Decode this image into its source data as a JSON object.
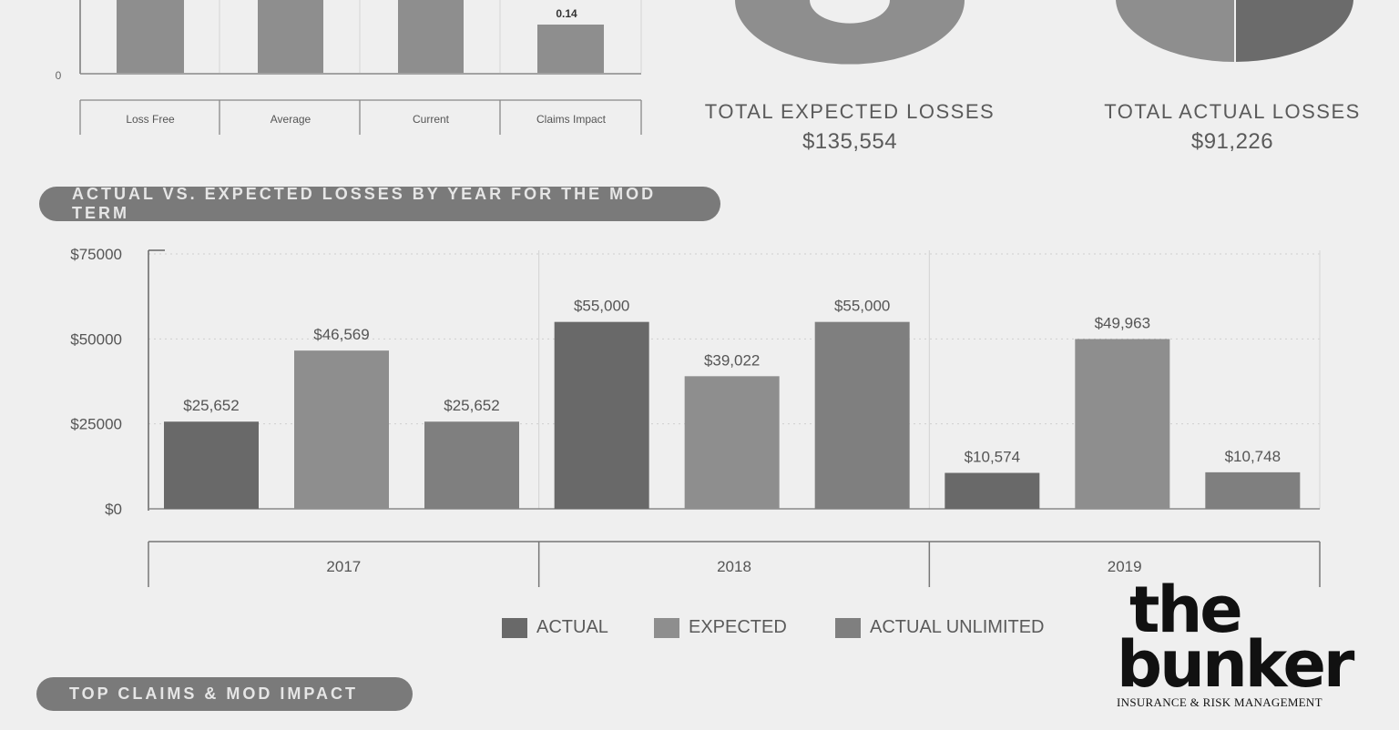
{
  "colors": {
    "actual": "#696969",
    "expected": "#8e8e8e",
    "actual_unlimited": "#7f7f7f",
    "pill": "#7a7a7a",
    "background": "#efefef"
  },
  "top_chart": {
    "y_zero_label": "0",
    "bar_label": "0.14",
    "categories": [
      "Loss Free",
      "Average",
      "Current",
      "Claims Impact"
    ]
  },
  "totals": {
    "expected": {
      "label": "TOTAL EXPECTED LOSSES",
      "value": "$135,554"
    },
    "actual": {
      "label": "TOTAL ACTUAL LOSSES",
      "value": "$91,226"
    }
  },
  "section_titles": {
    "actual_vs_expected": "ACTUAL VS. EXPECTED LOSSES BY YEAR FOR THE MOD TERM",
    "top_claims": "TOP CLAIMS & MOD IMPACT"
  },
  "chart_data": {
    "type": "bar",
    "categories": [
      "2017",
      "2018",
      "2019"
    ],
    "series": [
      {
        "name": "ACTUAL",
        "values": [
          25652,
          55000,
          10574
        ],
        "labels": [
          "$25,652",
          "$55,000",
          "$10,574"
        ]
      },
      {
        "name": "EXPECTED",
        "values": [
          46569,
          39022,
          49963
        ],
        "labels": [
          "$46,569",
          "$39,022",
          "$49,963"
        ]
      },
      {
        "name": "ACTUAL UNLIMITED",
        "values": [
          25652,
          55000,
          10748
        ],
        "labels": [
          "$25,652",
          "$55,000",
          "$10,748"
        ]
      }
    ],
    "ylim": [
      0,
      75000
    ],
    "yticks": [
      0,
      25000,
      50000,
      75000
    ],
    "ytick_labels": [
      "$0",
      "$25000",
      "$50000",
      "$75000"
    ],
    "grid": true,
    "legend": "bottom"
  },
  "logo": {
    "line1": "the",
    "line2": "bunker",
    "tagline": "INSURANCE & RISK MANAGEMENT"
  }
}
